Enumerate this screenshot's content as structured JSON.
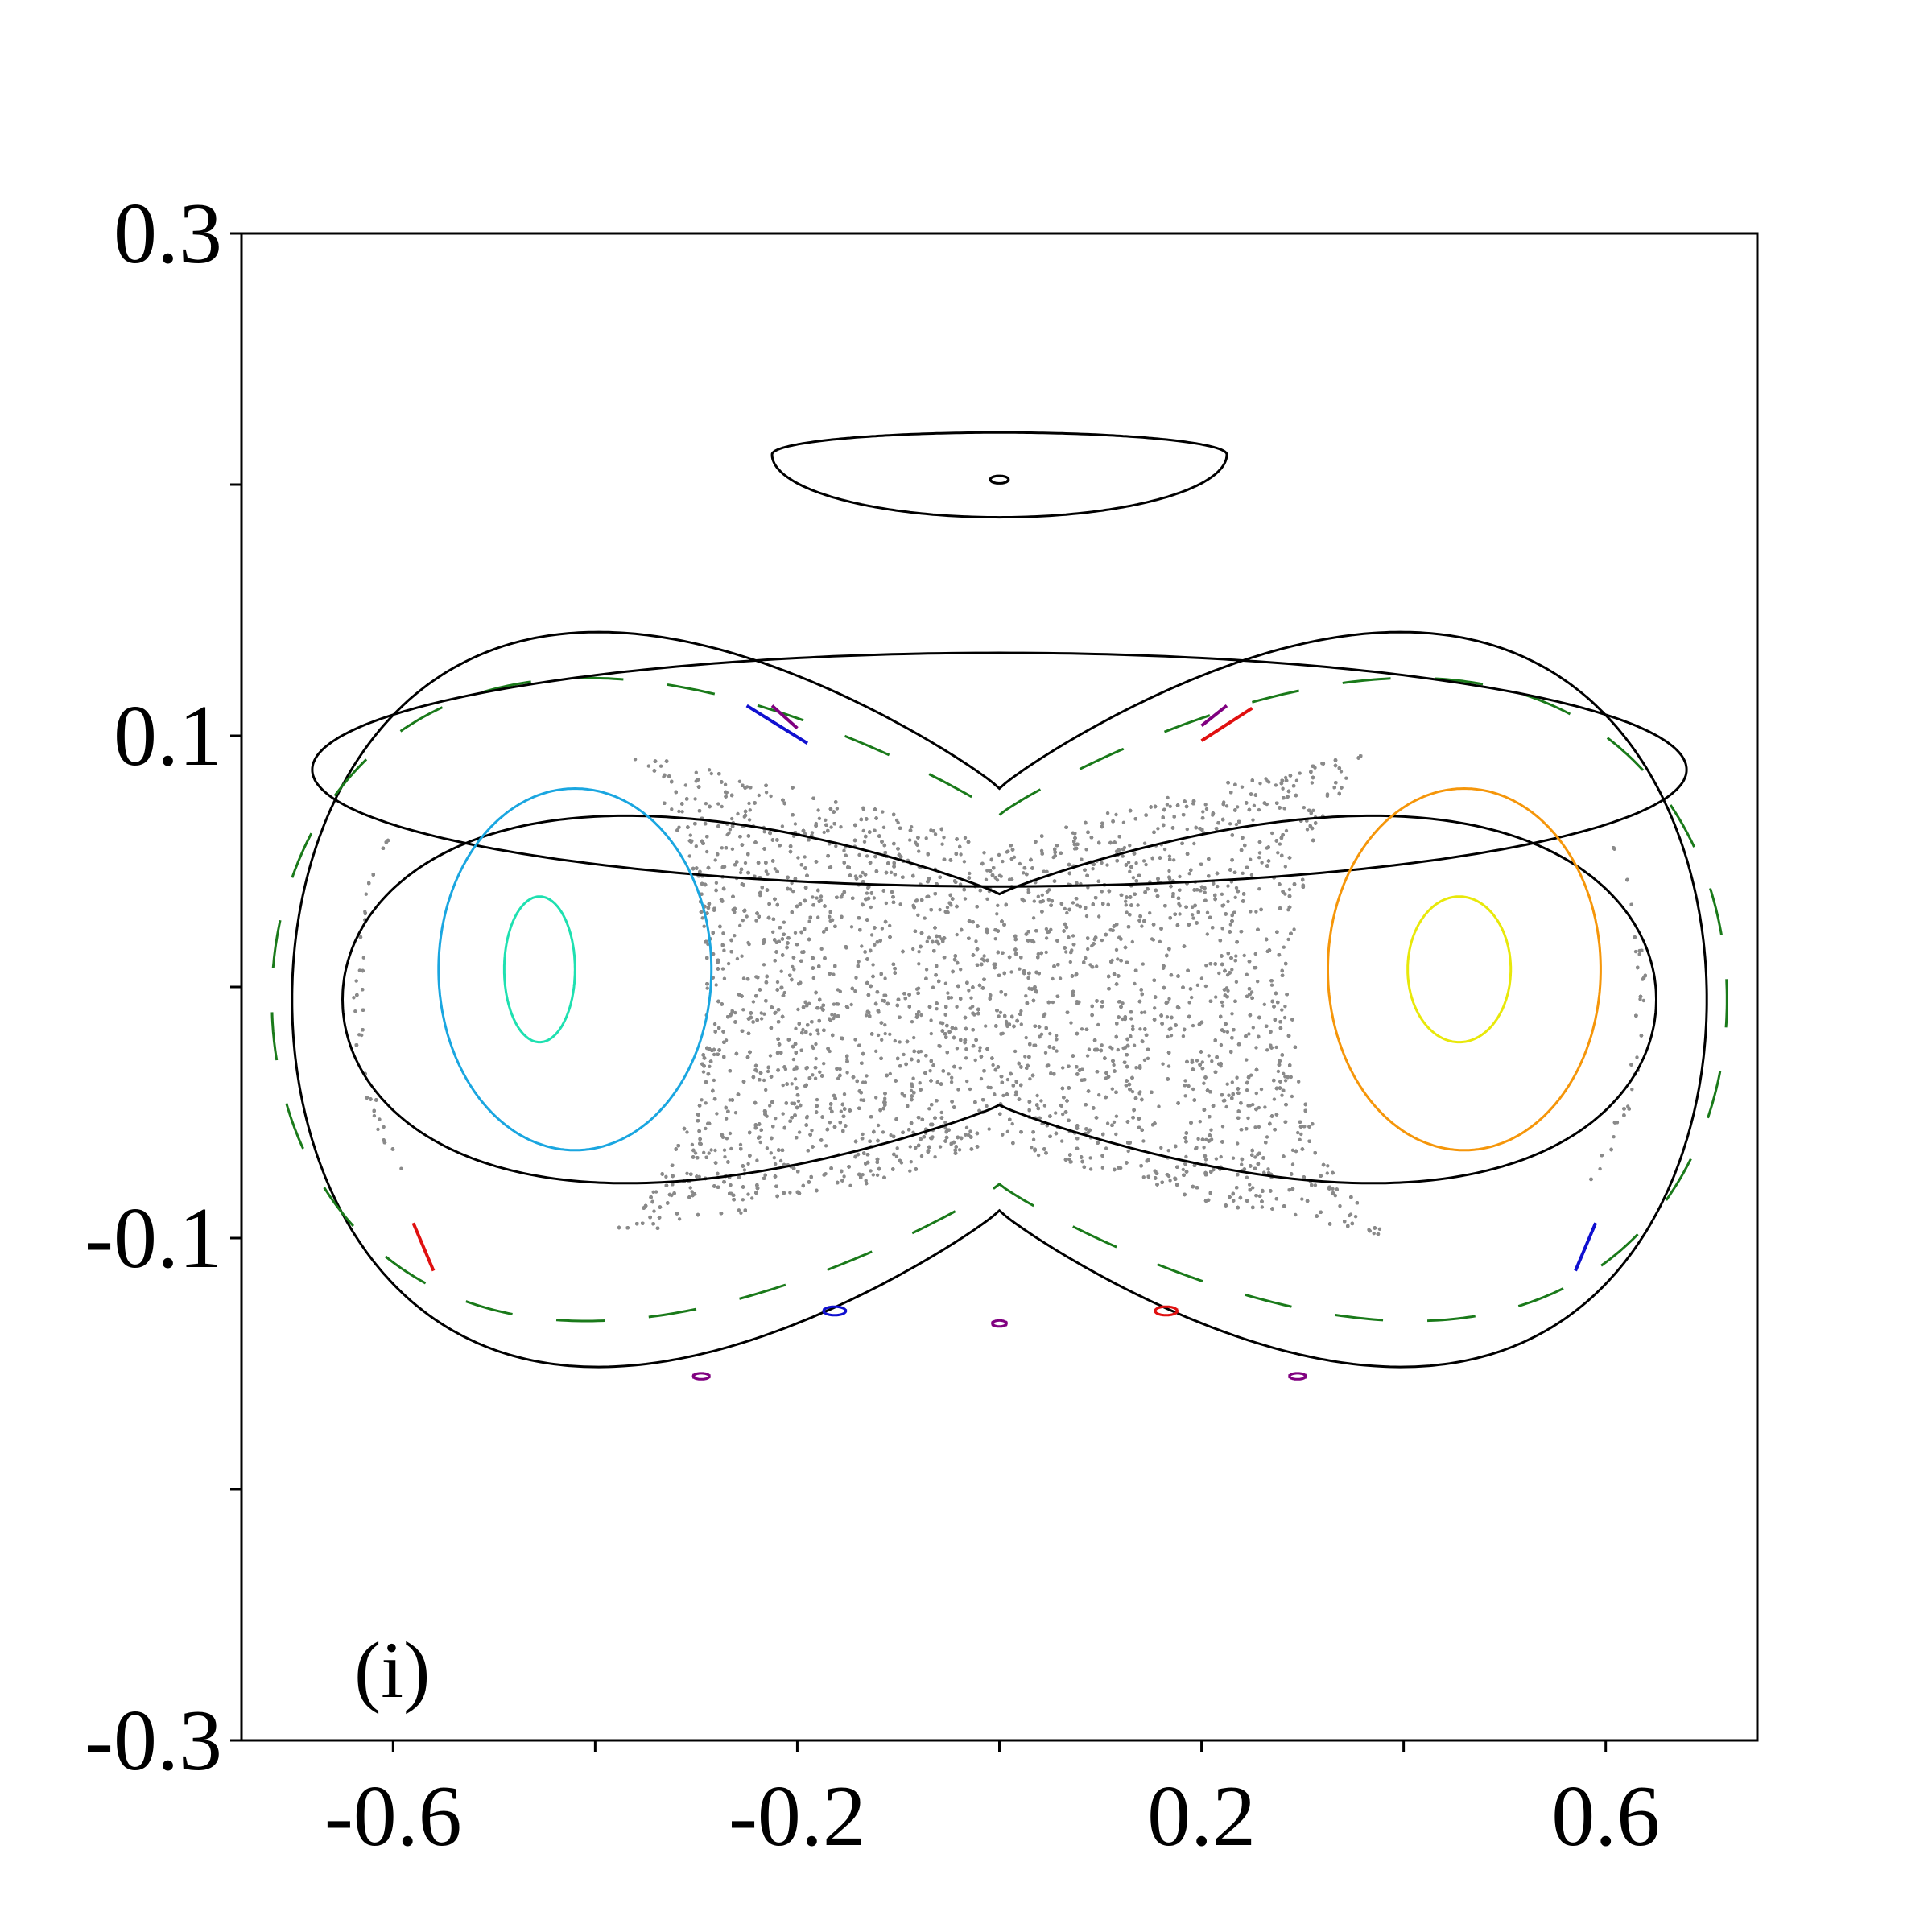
{
  "panel_label": "(i)",
  "chart_data": {
    "type": "scatter",
    "title": "",
    "xlabel": "",
    "ylabel": "",
    "xlim": [
      -0.75,
      0.75
    ],
    "ylim": [
      -0.3,
      0.3
    ],
    "xticks": [
      -0.6,
      -0.4,
      -0.2,
      0.0,
      0.2,
      0.4,
      0.6
    ],
    "xtick_labels": [
      "-0.6",
      "",
      "-0.2",
      "",
      "0.2",
      "",
      "0.6"
    ],
    "yticks": [
      -0.3,
      -0.2,
      -0.1,
      0.0,
      0.1,
      0.2,
      0.3
    ],
    "ytick_labels": [
      "-0.3",
      "",
      "-0.1",
      "",
      "0.1",
      "",
      "0.3"
    ],
    "grid": false,
    "legend": "none",
    "colors": {
      "chaotic_sea": "#8a8a8a",
      "invariant_curves": "#000000",
      "resonant_chain_outer": "#1a7a1a",
      "resonant_chain_inner": "#e03ae0",
      "left_outer_island": "#1aa6e0",
      "left_inner_island": "#1ee0b0",
      "right_outer_island": "#f5960a",
      "right_inner_island": "#e8e80a",
      "blue_island_chain": "#1010d0",
      "red_island_chain": "#e01010",
      "purple_island_chain": "#800080"
    },
    "series": [
      {
        "kind": "chaotic_sea",
        "color": "chaotic_sea",
        "center": [
          0.0,
          -0.003
        ],
        "x_radius": 0.64,
        "y_radius": 0.12,
        "bridge": 0.046,
        "left_island_hole": [
          -0.46,
          0.0,
          0.17,
          0.11
        ],
        "right_island_hole": [
          0.46,
          0.0,
          0.17,
          0.11
        ],
        "n_points": 26000
      },
      {
        "kind": "lobed_curve",
        "color": "invariant_curves",
        "xa": 0.65,
        "yb": 0.12,
        "bridge": 0.034,
        "y_center": -0.005
      },
      {
        "kind": "lobed_curve",
        "color": "invariant_curves",
        "xa": 0.7,
        "yb": 0.24,
        "bridge": 0.18,
        "y_center": -0.005
      },
      {
        "kind": "lobed_curve",
        "color": "resonant_chain_outer",
        "xa": 0.72,
        "yb": 0.21,
        "bridge": 0.18,
        "y_center": -0.005,
        "dashed": true
      },
      {
        "kind": "ring",
        "color": "invariant_curves",
        "center": [
          0.0,
          0.0865
        ],
        "x_radius": 0.68,
        "y_radius": 0.0465,
        "crescent": true
      },
      {
        "kind": "ring",
        "color": "invariant_curves",
        "center": [
          0.0,
          0.212
        ],
        "x_radius": 0.225,
        "y_radius": 0.025,
        "flat_top": true
      },
      {
        "kind": "ring",
        "color": "invariant_curves",
        "center": [
          0.0,
          0.202
        ],
        "x_radius": 0.009,
        "y_radius": 0.0015
      },
      {
        "kind": "ring",
        "color": "left_outer_island",
        "center": [
          -0.42,
          0.007
        ],
        "x_radius": 0.135,
        "y_radius": 0.072
      },
      {
        "kind": "ring",
        "color": "left_inner_island",
        "center": [
          -0.455,
          0.007
        ],
        "x_radius": 0.035,
        "y_radius": 0.029
      },
      {
        "kind": "ring",
        "color": "right_outer_island",
        "center": [
          0.46,
          0.007
        ],
        "x_radius": 0.135,
        "y_radius": 0.072
      },
      {
        "kind": "ring",
        "color": "right_inner_island",
        "center": [
          0.455,
          0.007
        ],
        "x_radius": 0.051,
        "y_radius": 0.029
      },
      {
        "kind": "segment",
        "color": "blue_island_chain",
        "from": [
          -0.25,
          0.112
        ],
        "to": [
          -0.19,
          0.097
        ]
      },
      {
        "kind": "segment",
        "color": "blue_island_chain",
        "from": [
          0.59,
          -0.094
        ],
        "to": [
          0.57,
          -0.113
        ]
      },
      {
        "kind": "ring",
        "color": "blue_island_chain",
        "center": [
          -0.163,
          -0.129
        ],
        "x_radius": 0.011,
        "y_radius": 0.0017
      },
      {
        "kind": "segment",
        "color": "red_island_chain",
        "from": [
          0.2,
          0.098
        ],
        "to": [
          0.25,
          0.111
        ]
      },
      {
        "kind": "segment",
        "color": "red_island_chain",
        "from": [
          -0.58,
          -0.094
        ],
        "to": [
          -0.56,
          -0.113
        ]
      },
      {
        "kind": "ring",
        "color": "red_island_chain",
        "center": [
          0.165,
          -0.129
        ],
        "x_radius": 0.011,
        "y_radius": 0.0017
      },
      {
        "kind": "segment",
        "color": "purple_island_chain",
        "from": [
          -0.225,
          0.112
        ],
        "to": [
          -0.2,
          0.103
        ]
      },
      {
        "kind": "segment",
        "color": "purple_island_chain",
        "from": [
          0.2,
          0.104
        ],
        "to": [
          0.225,
          0.112
        ]
      },
      {
        "kind": "ring",
        "color": "purple_island_chain",
        "center": [
          0.0,
          -0.134
        ],
        "x_radius": 0.007,
        "y_radius": 0.0012
      },
      {
        "kind": "ring",
        "color": "purple_island_chain",
        "center": [
          -0.295,
          -0.155
        ],
        "x_radius": 0.008,
        "y_radius": 0.0012
      },
      {
        "kind": "ring",
        "color": "purple_island_chain",
        "center": [
          0.295,
          -0.155
        ],
        "x_radius": 0.008,
        "y_radius": 0.0012
      }
    ]
  }
}
